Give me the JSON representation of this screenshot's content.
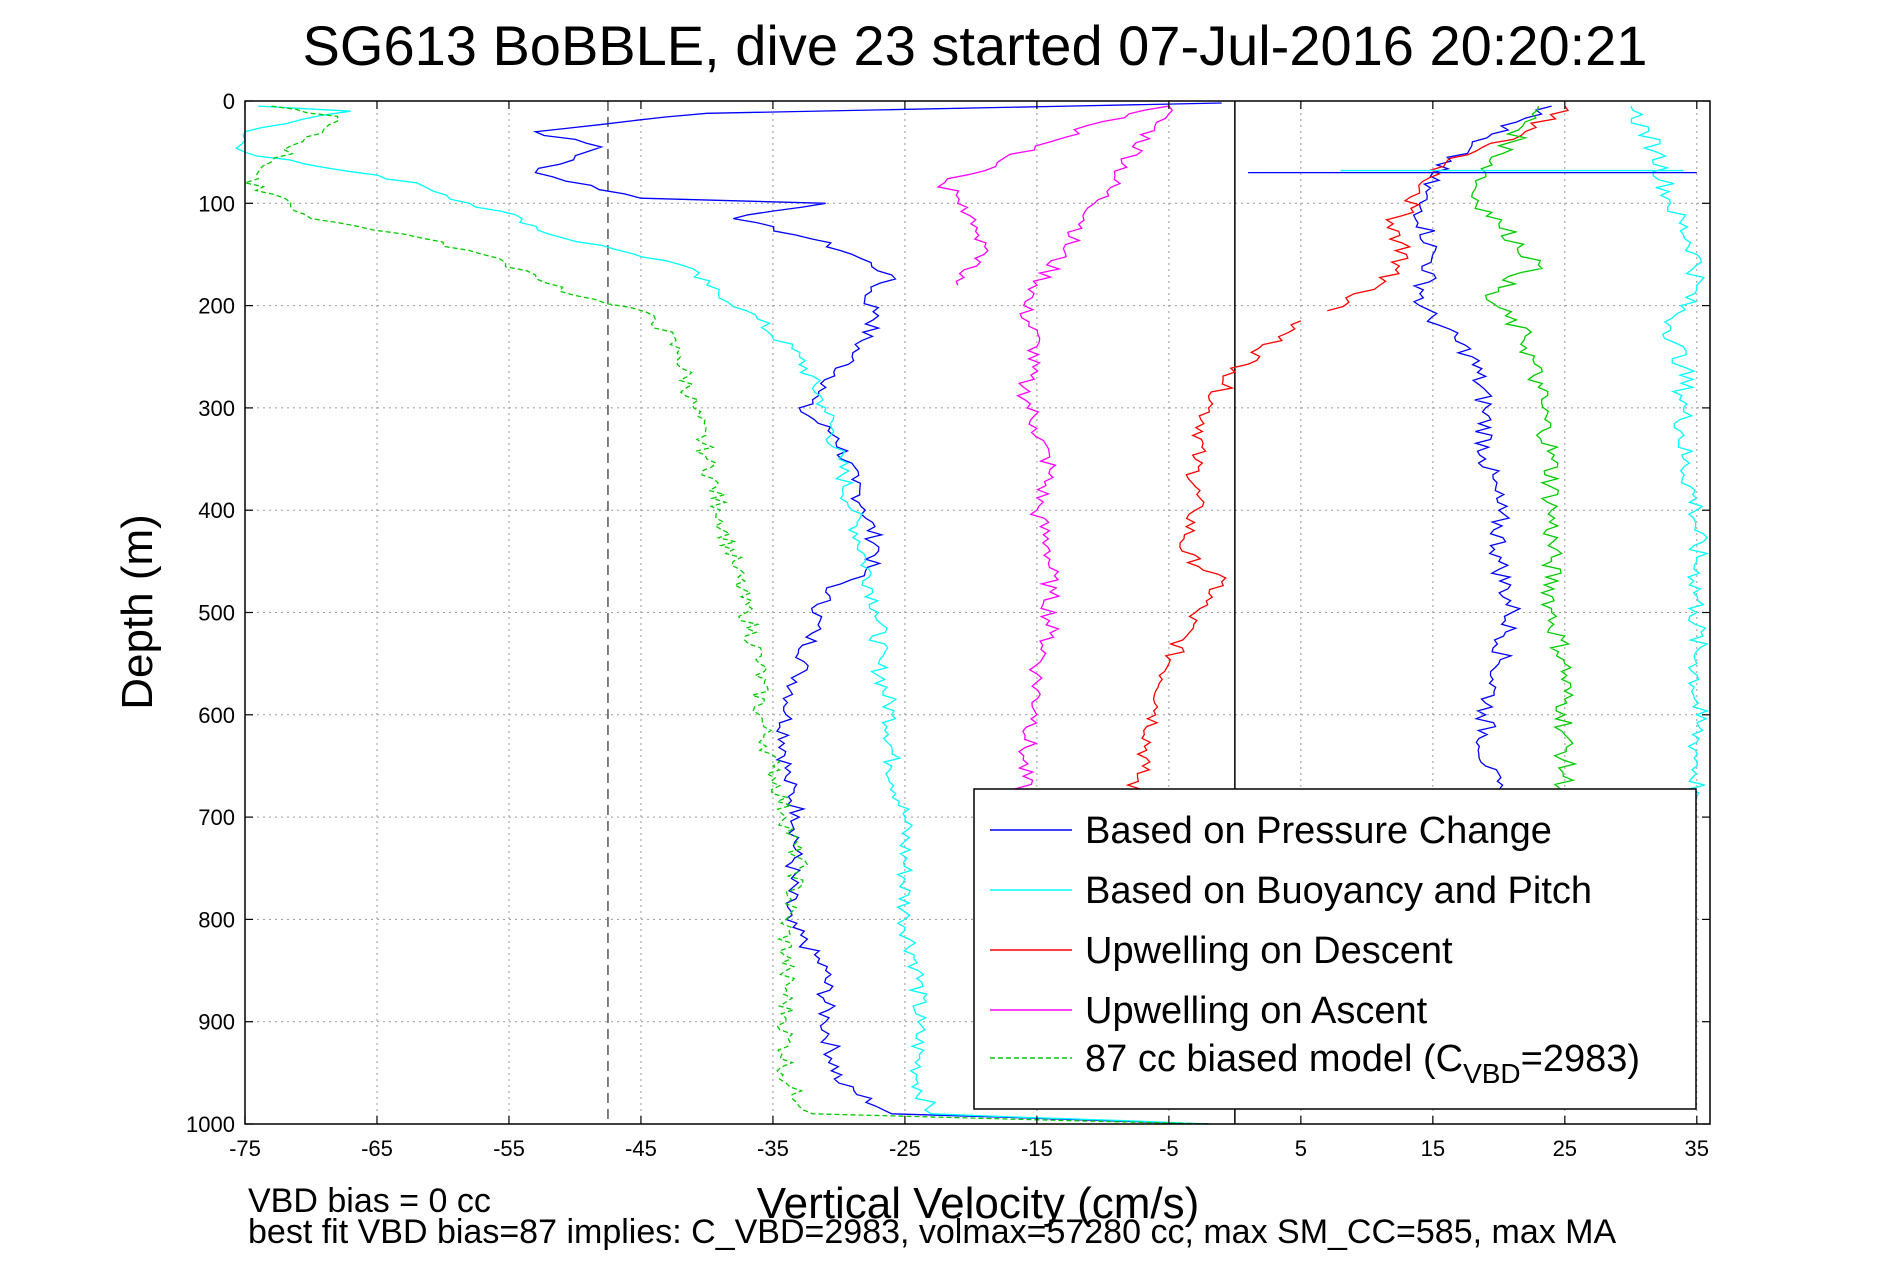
{
  "chart_data": {
    "type": "line",
    "title": "SG613 BoBBLE, dive 23 started 07-Jul-2016 20:20:21",
    "xlabel": "Vertical Velocity (cm/s)",
    "ylabel": "Depth (m)",
    "xlim": [
      -75,
      36
    ],
    "ylim": [
      0,
      1000
    ],
    "y_reversed": true,
    "grid": true,
    "xticks": [
      -75,
      -65,
      -55,
      -45,
      -35,
      -25,
      -15,
      -5,
      5,
      15,
      25,
      35
    ],
    "yticks": [
      0,
      100,
      200,
      300,
      400,
      500,
      600,
      700,
      800,
      900,
      1000
    ],
    "legend_position": "bottom-right",
    "reference_lines": [
      {
        "x": -47.5,
        "style": "dashed",
        "color": "#555555"
      },
      {
        "x": 0,
        "style": "solid",
        "color": "#000000"
      }
    ],
    "series": [
      {
        "name": "Based on Pressure Change",
        "color": "#0000ff",
        "style": "solid",
        "points": [
          [
            -1,
            2
          ],
          [
            -40,
            12
          ],
          [
            -53,
            30
          ],
          [
            -48,
            45
          ],
          [
            -53,
            70
          ],
          [
            -45,
            95
          ],
          [
            -31,
            100
          ],
          [
            -38,
            115
          ],
          [
            -32,
            135
          ],
          [
            -29,
            150
          ],
          [
            -26,
            170
          ],
          [
            -28,
            190
          ],
          [
            -27,
            210
          ],
          [
            -29,
            250
          ],
          [
            -31,
            280
          ],
          [
            -33,
            300
          ],
          [
            -30,
            330
          ],
          [
            -29,
            370
          ],
          [
            -28,
            400
          ],
          [
            -27,
            440
          ],
          [
            -28,
            460
          ],
          [
            -31,
            480
          ],
          [
            -32,
            520
          ],
          [
            -33,
            560
          ],
          [
            -34,
            600
          ],
          [
            -34,
            660
          ],
          [
            -33,
            700
          ],
          [
            -34,
            800
          ],
          [
            -31,
            850
          ],
          [
            -31,
            900
          ],
          [
            -30,
            960
          ],
          [
            -26,
            990
          ],
          [
            -2,
            1000
          ]
        ]
      },
      {
        "name": "Based on Buoyancy and Pitch",
        "color": "#00ffff",
        "style": "solid",
        "points": [
          [
            -74,
            5
          ],
          [
            -67,
            10
          ],
          [
            -75,
            30
          ],
          [
            -75,
            50
          ],
          [
            -69,
            65
          ],
          [
            -62,
            80
          ],
          [
            -58,
            100
          ],
          [
            -54,
            115
          ],
          [
            -52,
            130
          ],
          [
            -47,
            145
          ],
          [
            -42,
            160
          ],
          [
            -40,
            180
          ],
          [
            -37,
            205
          ],
          [
            -33,
            250
          ],
          [
            -31,
            300
          ],
          [
            -30,
            350
          ],
          [
            -29,
            400
          ],
          [
            -28,
            450
          ],
          [
            -27,
            500
          ],
          [
            -27,
            550
          ],
          [
            -26,
            600
          ],
          [
            -26,
            650
          ],
          [
            -25,
            700
          ],
          [
            -25,
            800
          ],
          [
            -24,
            850
          ],
          [
            -24,
            900
          ],
          [
            -24,
            960
          ],
          [
            -23,
            990
          ],
          [
            -2,
            1000
          ]
        ]
      },
      {
        "name": "Upwelling on Descent",
        "color": "#ff0000",
        "style": "solid",
        "points": [
          [
            5,
            215
          ],
          [
            0,
            265
          ],
          [
            -2,
            300
          ],
          [
            -3,
            350
          ],
          [
            -3,
            400
          ],
          [
            -4,
            440
          ],
          [
            -1,
            470
          ],
          [
            -3,
            500
          ],
          [
            -5,
            550
          ],
          [
            -6,
            600
          ],
          [
            -7,
            650
          ],
          [
            -8,
            680
          ]
        ]
      },
      {
        "name": "Upwelling on Ascent",
        "color": "#ff00ff",
        "style": "solid",
        "points": [
          [
            -21,
            180
          ],
          [
            -19,
            150
          ],
          [
            -20,
            120
          ],
          [
            -21,
            100
          ],
          [
            -22,
            80
          ],
          [
            -18,
            60
          ],
          [
            -14,
            40
          ],
          [
            -10,
            20
          ],
          [
            -5,
            5
          ],
          [
            -16,
            200
          ],
          [
            -15,
            240
          ],
          [
            -16,
            280
          ],
          [
            -15,
            320
          ],
          [
            -14,
            360
          ],
          [
            -15,
            400
          ],
          [
            -14,
            440
          ],
          [
            -14,
            480
          ],
          [
            -14,
            520
          ],
          [
            -15,
            560
          ],
          [
            -15,
            600
          ],
          [
            -16,
            640
          ],
          [
            -16,
            680
          ]
        ]
      },
      {
        "name": "87 cc biased model (CVBD=2983)",
        "color": "#00cc00",
        "style": "dashed",
        "points": [
          [
            -73,
            5
          ],
          [
            -68,
            15
          ],
          [
            -75,
            80
          ],
          [
            -72,
            95
          ],
          [
            -70,
            115
          ],
          [
            -63,
            130
          ],
          [
            -57,
            150
          ],
          [
            -53,
            170
          ],
          [
            -50,
            190
          ],
          [
            -44,
            210
          ],
          [
            -42,
            250
          ],
          [
            -41,
            300
          ],
          [
            -40,
            350
          ],
          [
            -39,
            400
          ],
          [
            -38,
            450
          ],
          [
            -37,
            500
          ],
          [
            -36,
            550
          ],
          [
            -36,
            600
          ],
          [
            -35,
            650
          ],
          [
            -34,
            700
          ],
          [
            -33,
            750
          ],
          [
            -34,
            800
          ],
          [
            -34,
            850
          ],
          [
            -34,
            900
          ],
          [
            -34,
            960
          ],
          [
            -32,
            990
          ],
          [
            -2,
            1000
          ]
        ]
      }
    ],
    "right_series": [
      {
        "color": "#0000ff",
        "points": [
          [
            24,
            5
          ],
          [
            18,
            40
          ],
          [
            15,
            70
          ],
          [
            14,
            100
          ],
          [
            15,
            150
          ],
          [
            14,
            200
          ],
          [
            18,
            250
          ],
          [
            19,
            300
          ],
          [
            19,
            350
          ],
          [
            20,
            400
          ],
          [
            20,
            450
          ],
          [
            21,
            500
          ],
          [
            20,
            550
          ],
          [
            19,
            600
          ],
          [
            19,
            650
          ],
          [
            20,
            680
          ]
        ]
      },
      {
        "color": "#00ffff",
        "points": [
          [
            30,
            5
          ],
          [
            32,
            50
          ],
          [
            33,
            100
          ],
          [
            35,
            150
          ],
          [
            35,
            180
          ],
          [
            33,
            220
          ],
          [
            34,
            260
          ],
          [
            34,
            300
          ],
          [
            34,
            350
          ],
          [
            35,
            400
          ],
          [
            35,
            450
          ],
          [
            35,
            500
          ],
          [
            35,
            550
          ],
          [
            35,
            600
          ],
          [
            35,
            650
          ],
          [
            35,
            680
          ]
        ]
      },
      {
        "color": "#ff0000",
        "points": [
          [
            25,
            5
          ],
          [
            22,
            30
          ],
          [
            16,
            60
          ],
          [
            14,
            90
          ],
          [
            12,
            120
          ],
          [
            13,
            150
          ],
          [
            11,
            180
          ],
          [
            7,
            205
          ]
        ]
      },
      {
        "color": "#00cc00",
        "points": [
          [
            23,
            5
          ],
          [
            21,
            40
          ],
          [
            19,
            70
          ],
          [
            18,
            90
          ],
          [
            20,
            120
          ],
          [
            23,
            160
          ],
          [
            19,
            190
          ],
          [
            22,
            230
          ],
          [
            23,
            280
          ],
          [
            24,
            350
          ],
          [
            24,
            400
          ],
          [
            24,
            450
          ],
          [
            24,
            500
          ],
          [
            25,
            550
          ],
          [
            25,
            600
          ],
          [
            25,
            680
          ]
        ]
      }
    ]
  },
  "texts": {
    "vbd_bias": "VBD bias = 0 cc",
    "best_fit": "best fit VBD bias=87 implies: C_VBD=2983, volmax=57280 cc, max SM_CC=585, max MA"
  },
  "legend": [
    {
      "label": "Based on Pressure Change",
      "color": "#0000ff",
      "style": "solid"
    },
    {
      "label": "Based on Buoyancy and Pitch",
      "color": "#00ffff",
      "style": "solid"
    },
    {
      "label": "Upwelling on Descent",
      "color": "#ff0000",
      "style": "solid"
    },
    {
      "label": "Upwelling on Ascent",
      "color": "#ff00ff",
      "style": "solid"
    },
    {
      "label_prefix": "87 cc biased model (C",
      "label_sub": "VBD",
      "label_suffix": "=2983)",
      "color": "#00cc00",
      "style": "dashed"
    }
  ]
}
